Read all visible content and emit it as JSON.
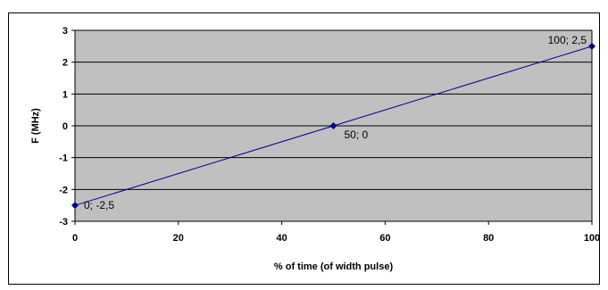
{
  "chart_data": {
    "type": "line",
    "xlabel": "% of time (of width pulse)",
    "ylabel": "F (MHz)",
    "xlim": [
      0,
      100
    ],
    "ylim": [
      -3,
      3
    ],
    "x_ticks": [
      "0",
      "20",
      "40",
      "60",
      "80",
      "100"
    ],
    "y_ticks": [
      "3",
      "2",
      "1",
      "0",
      "-1",
      "-2",
      "-3"
    ],
    "grid": "horizontal",
    "plot_background": "#c0c0c0",
    "line_color": "#00008b",
    "series": [
      {
        "points": [
          {
            "x": 0,
            "y": -2.5,
            "label": "0; -2,5"
          },
          {
            "x": 50,
            "y": 0,
            "label": "50; 0"
          },
          {
            "x": 100,
            "y": 2.5,
            "label": "100; 2,5"
          }
        ]
      }
    ]
  }
}
